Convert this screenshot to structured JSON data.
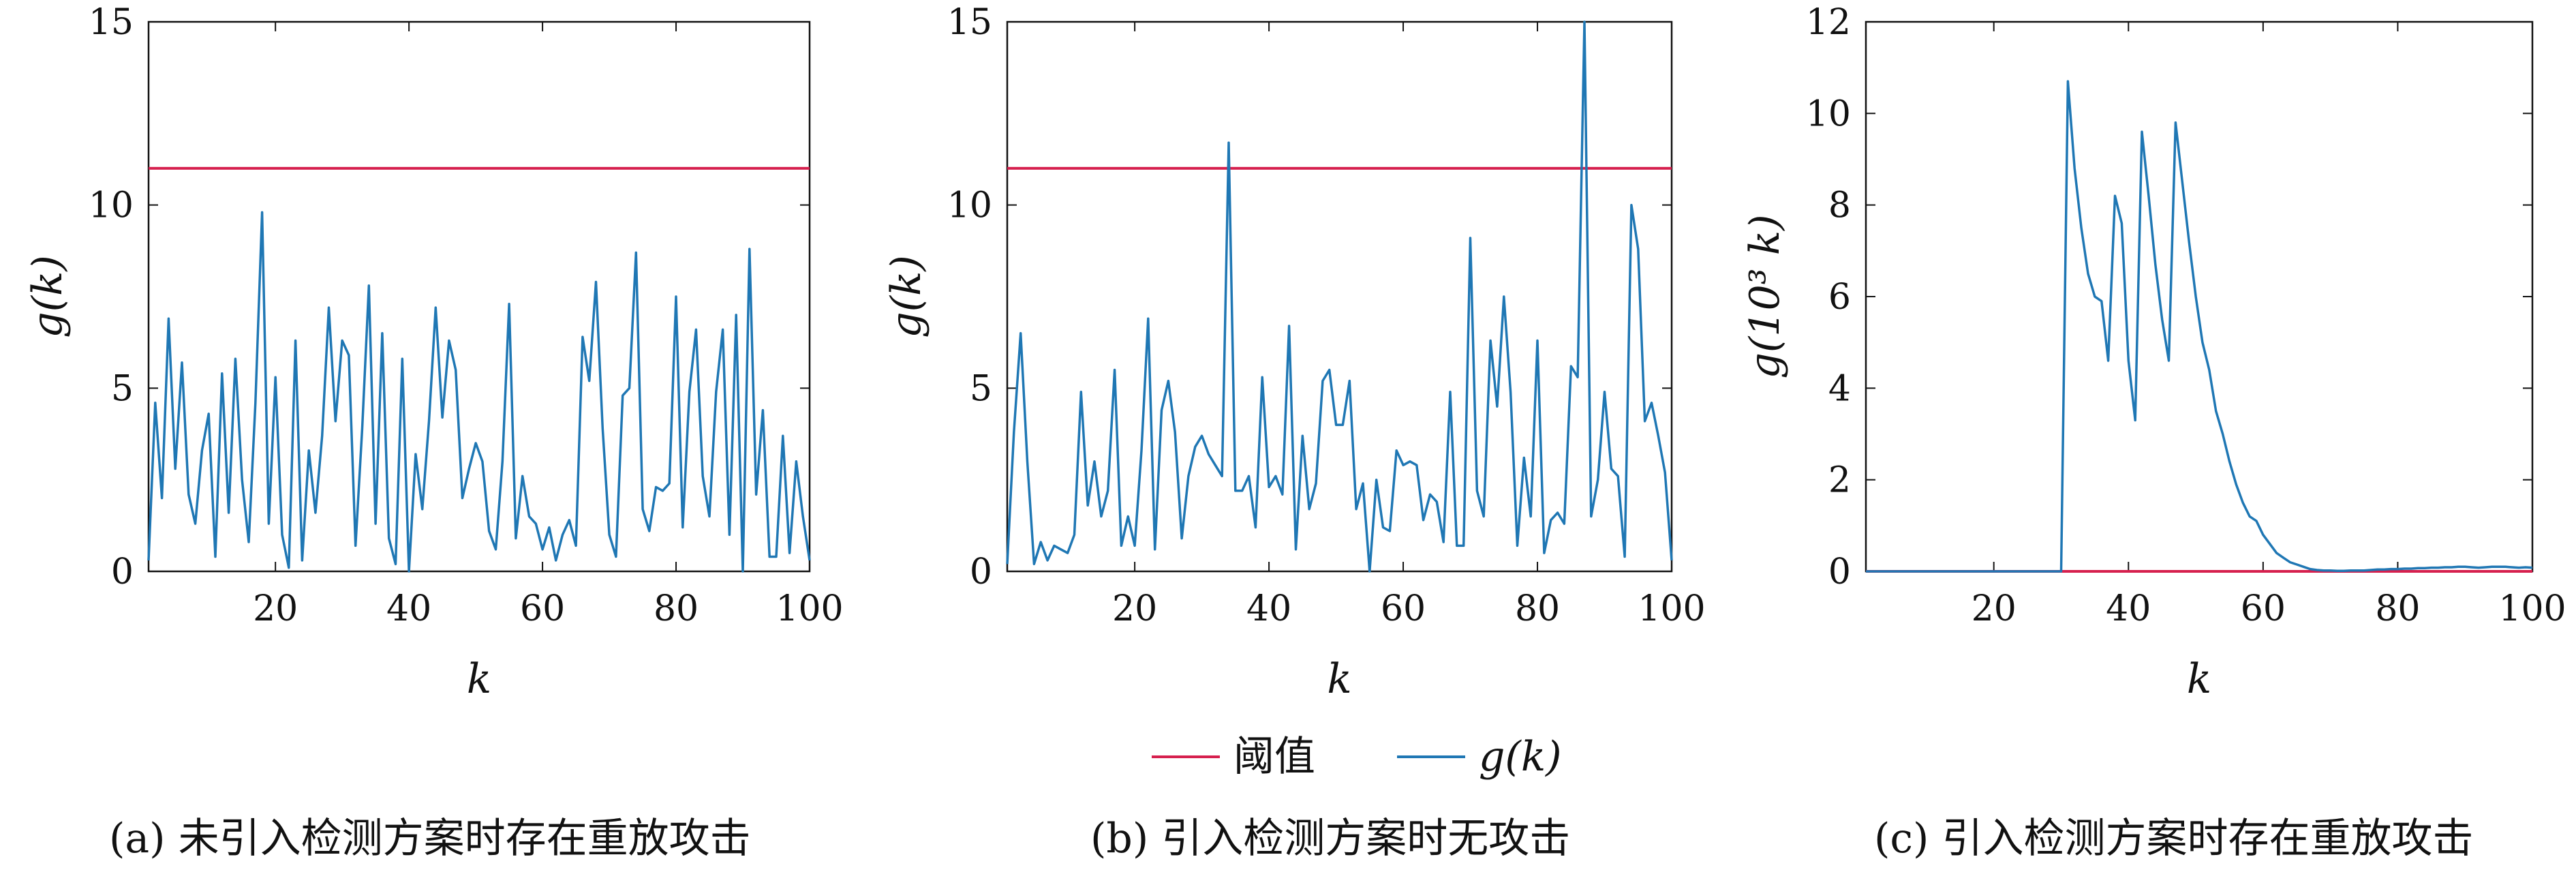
{
  "colors": {
    "threshold": "#d6204e",
    "signal": "#1f77b4",
    "axis": "#111111"
  },
  "legend": {
    "threshold_label": "阈值",
    "signal_label": "g(k)"
  },
  "chart_data": [
    {
      "type": "line",
      "caption": "(a) 未引入检测方案时存在重放攻击",
      "xlabel": "k",
      "ylabel": "g(k)",
      "xlim": [
        1,
        100
      ],
      "ylim": [
        0,
        15
      ],
      "xticks": [
        20,
        40,
        60,
        80,
        100
      ],
      "yticks": [
        0,
        5,
        10,
        15
      ],
      "grid": false,
      "threshold": 11,
      "series": [
        {
          "name": "g(k)",
          "values": [
            0.3,
            4.6,
            2.0,
            6.9,
            2.8,
            5.7,
            2.1,
            1.3,
            3.3,
            4.3,
            0.4,
            5.4,
            1.6,
            5.8,
            2.5,
            0.8,
            4.6,
            9.8,
            1.3,
            5.3,
            1.0,
            0.1,
            6.3,
            0.3,
            3.3,
            1.6,
            3.7,
            7.2,
            4.1,
            6.3,
            5.9,
            0.7,
            3.9,
            7.8,
            1.3,
            6.5,
            0.9,
            0.2,
            5.8,
            0.0,
            3.2,
            1.7,
            4.1,
            7.2,
            4.2,
            6.3,
            5.5,
            2.0,
            2.8,
            3.5,
            3.0,
            1.1,
            0.6,
            3.0,
            7.3,
            0.9,
            2.6,
            1.5,
            1.3,
            0.6,
            1.2,
            0.3,
            1.0,
            1.4,
            0.7,
            6.4,
            5.2,
            7.9,
            3.9,
            1.0,
            0.4,
            4.8,
            5.0,
            8.7,
            1.7,
            1.1,
            2.3,
            2.2,
            2.4,
            7.5,
            1.2,
            4.9,
            6.6,
            2.6,
            1.5,
            4.9,
            6.6,
            1.0,
            7.0,
            0.0,
            8.8,
            2.1,
            4.4,
            0.4,
            0.4,
            3.7,
            0.5,
            3.0,
            1.5,
            0.3
          ]
        }
      ]
    },
    {
      "type": "line",
      "caption": "(b) 引入检测方案时无攻击",
      "xlabel": "k",
      "ylabel": "g(k)",
      "xlim": [
        1,
        100
      ],
      "ylim": [
        0,
        15
      ],
      "xticks": [
        20,
        40,
        60,
        80,
        100
      ],
      "yticks": [
        0,
        5,
        10,
        15
      ],
      "grid": false,
      "threshold": 11,
      "series": [
        {
          "name": "g(k)",
          "values": [
            0.2,
            3.8,
            6.5,
            3.0,
            0.2,
            0.8,
            0.3,
            0.7,
            0.6,
            0.5,
            1.0,
            4.9,
            1.8,
            3.0,
            1.5,
            2.2,
            5.5,
            0.7,
            1.5,
            0.7,
            3.3,
            6.9,
            0.6,
            4.4,
            5.2,
            3.8,
            0.9,
            2.6,
            3.4,
            3.7,
            3.2,
            2.9,
            2.6,
            11.7,
            2.2,
            2.2,
            2.6,
            1.2,
            5.3,
            2.3,
            2.6,
            2.1,
            6.7,
            0.6,
            3.7,
            1.7,
            2.4,
            5.2,
            5.5,
            4.0,
            4.0,
            5.2,
            1.7,
            2.4,
            0.0,
            2.5,
            1.2,
            1.1,
            3.3,
            2.9,
            3.0,
            2.9,
            1.4,
            2.1,
            1.9,
            0.8,
            4.9,
            0.7,
            0.7,
            9.1,
            2.2,
            1.5,
            6.3,
            4.5,
            7.5,
            4.9,
            0.7,
            3.1,
            1.5,
            6.3,
            0.5,
            1.4,
            1.6,
            1.3,
            5.6,
            5.3,
            15.0,
            1.5,
            2.5,
            4.9,
            2.8,
            2.6,
            0.4,
            10.0,
            8.8,
            4.1,
            4.6,
            3.7,
            2.7,
            0.3
          ]
        }
      ]
    },
    {
      "type": "line",
      "caption": "(c) 引入检测方案时存在重放攻击",
      "xlabel": "k",
      "ylabel": "g(10³ k)",
      "xlim": [
        1,
        100
      ],
      "ylim": [
        0,
        12
      ],
      "xticks": [
        20,
        40,
        60,
        80,
        100
      ],
      "yticks": [
        0,
        2,
        4,
        6,
        8,
        10,
        12
      ],
      "grid": false,
      "threshold": 0,
      "series": [
        {
          "name": "g(k)",
          "values": [
            0,
            0,
            0,
            0,
            0,
            0,
            0,
            0,
            0,
            0,
            0,
            0,
            0,
            0,
            0,
            0,
            0,
            0,
            0,
            0,
            0,
            0,
            0,
            0,
            0,
            0,
            0,
            0,
            0,
            0,
            10.7,
            8.8,
            7.5,
            6.5,
            6.0,
            5.9,
            4.6,
            8.2,
            7.6,
            4.6,
            3.3,
            9.6,
            8.2,
            6.7,
            5.5,
            4.6,
            9.8,
            8.5,
            7.2,
            6.0,
            5.0,
            4.4,
            3.5,
            3.0,
            2.4,
            1.9,
            1.5,
            1.2,
            1.1,
            0.8,
            0.6,
            0.4,
            0.3,
            0.2,
            0.15,
            0.1,
            0.05,
            0.03,
            0.02,
            0.02,
            0.01,
            0.01,
            0.02,
            0.02,
            0.02,
            0.03,
            0.04,
            0.04,
            0.05,
            0.05,
            0.06,
            0.06,
            0.07,
            0.07,
            0.08,
            0.08,
            0.09,
            0.09,
            0.1,
            0.1,
            0.09,
            0.08,
            0.09,
            0.1,
            0.1,
            0.1,
            0.09,
            0.08,
            0.09,
            0.08
          ]
        }
      ]
    }
  ]
}
